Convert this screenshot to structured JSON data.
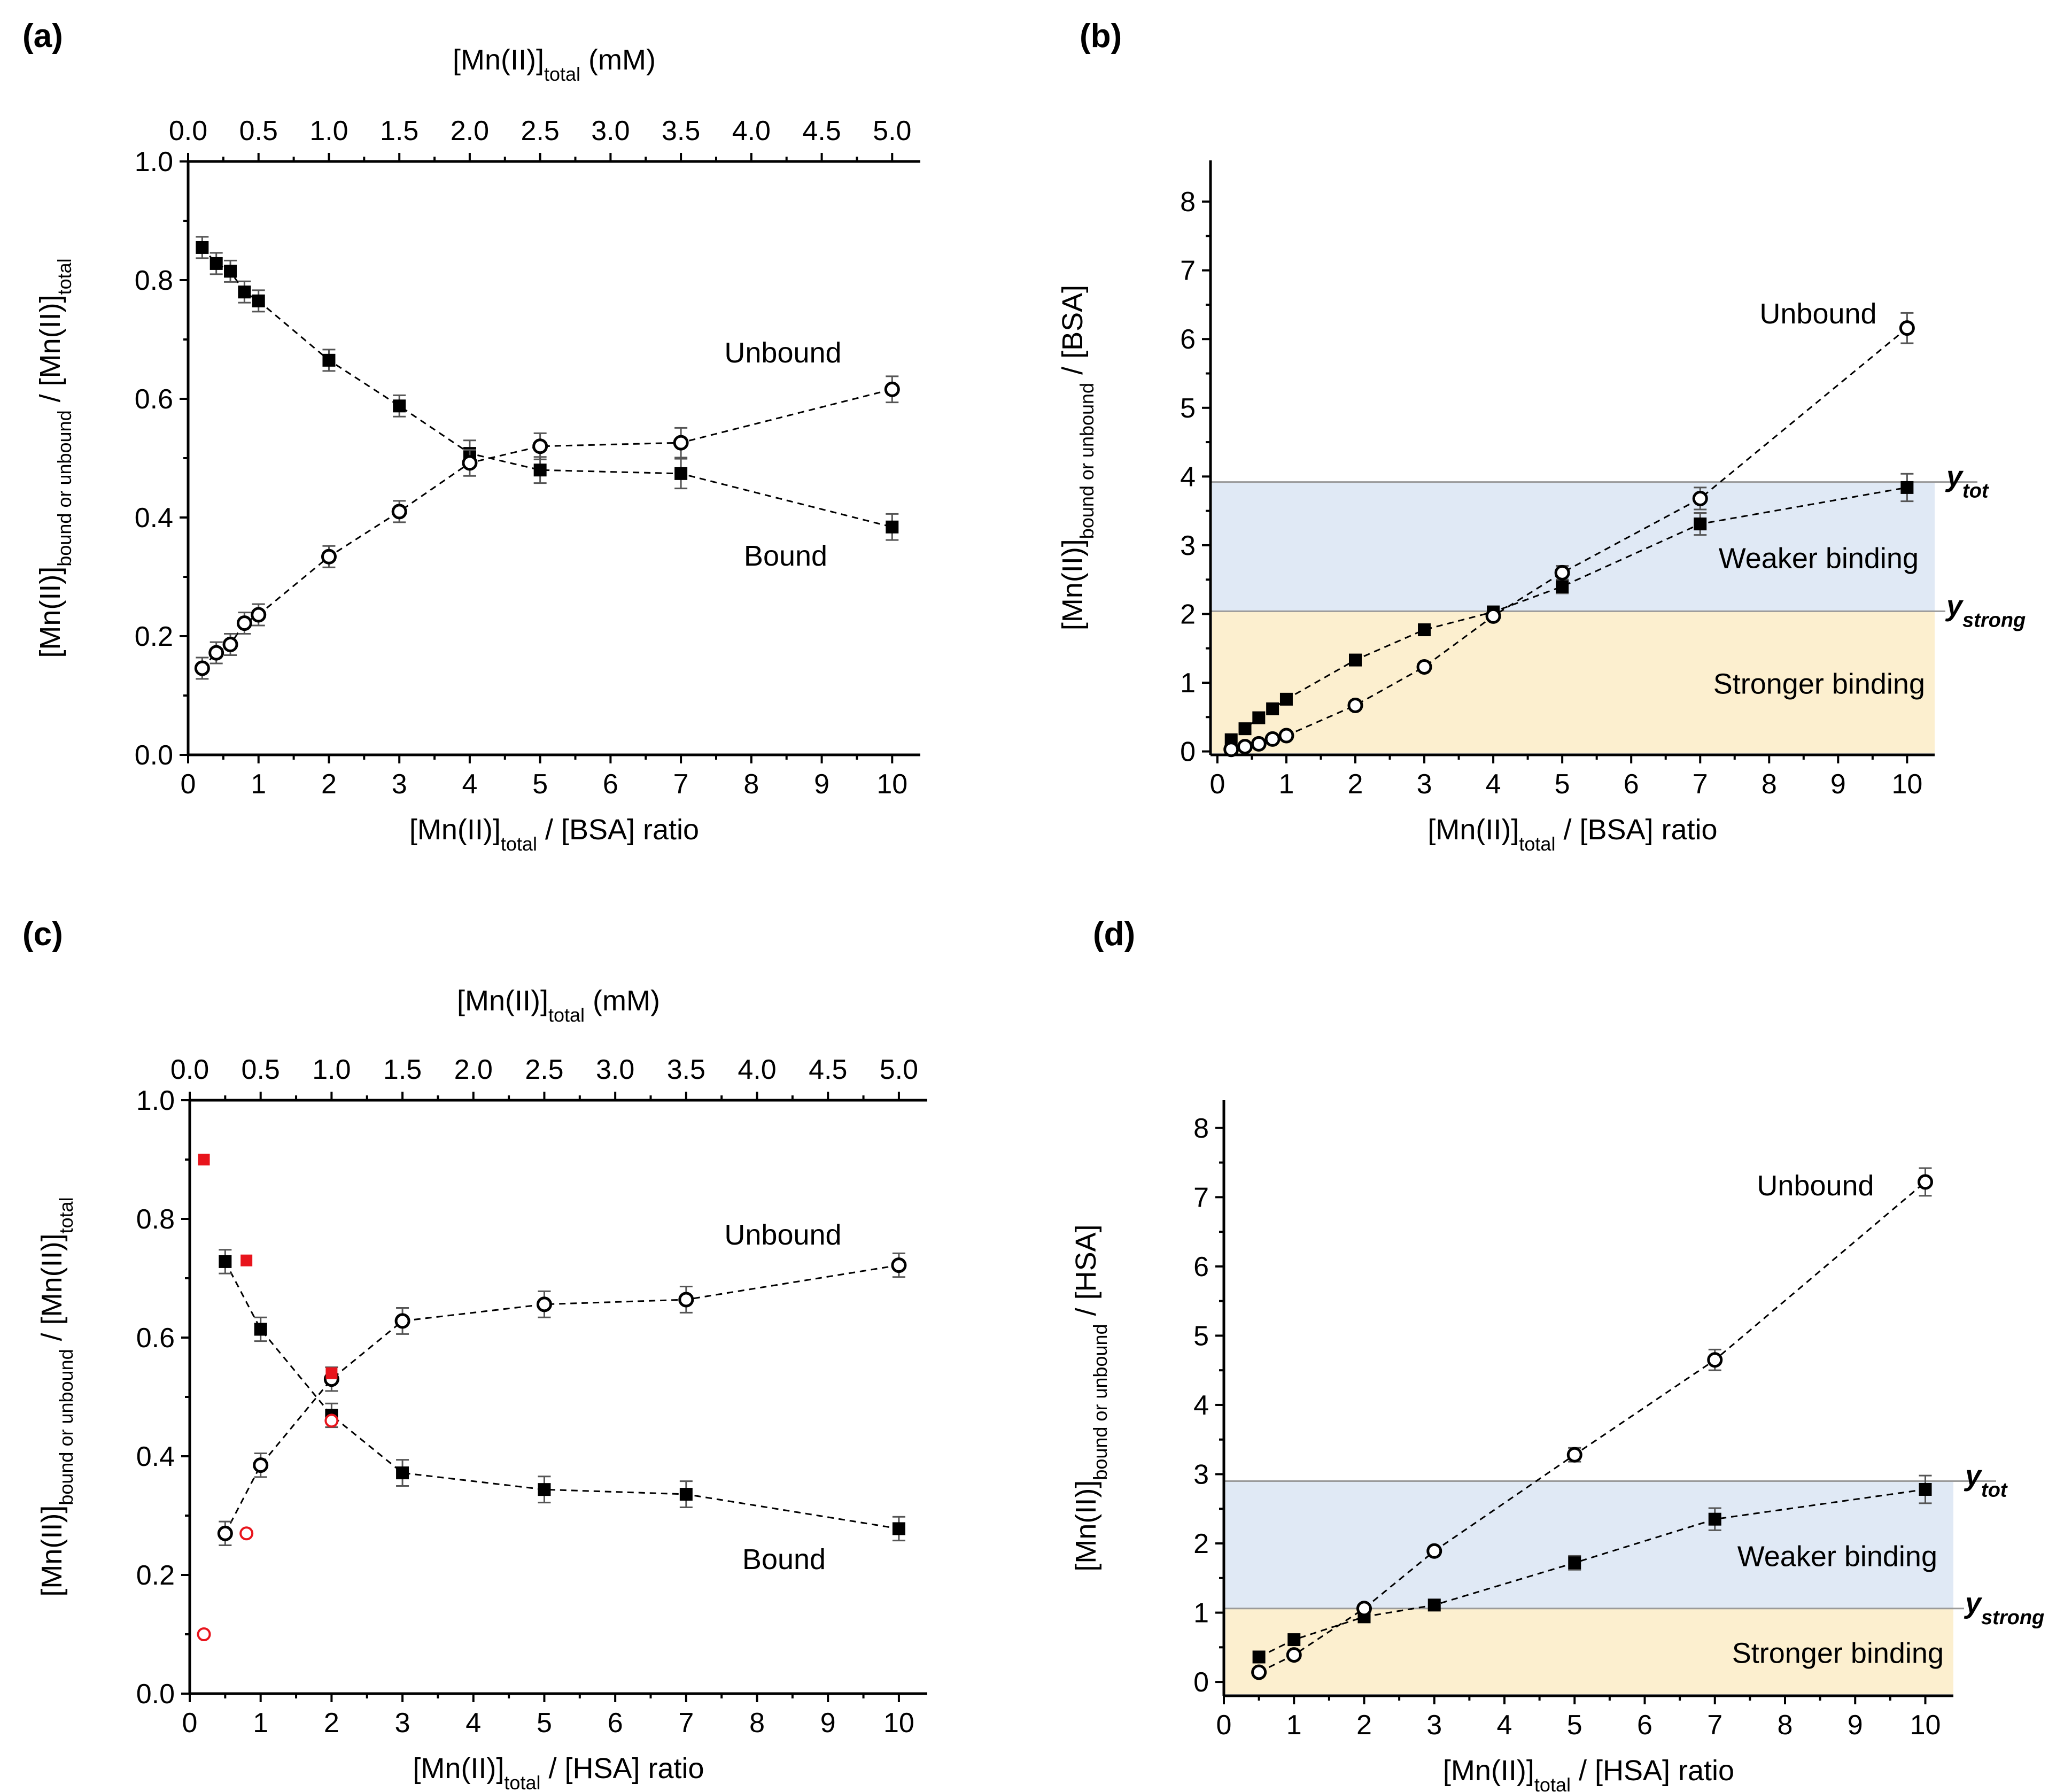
{
  "chart_data": [
    {
      "id": "a",
      "type": "scatter",
      "panel_label": "(a)",
      "top_axis": {
        "label_main": "[Mn(II)]",
        "label_sub": "total",
        "label_unit": " (mM)",
        "ticks": [
          "0.0",
          "0.5",
          "1.0",
          "1.5",
          "2.0",
          "2.5",
          "3.0",
          "3.5",
          "4.0",
          "4.5",
          "5.0"
        ],
        "xlim": [
          0,
          5.2
        ]
      },
      "xlabel_main": "[Mn(II)]",
      "xlabel_sub": "total",
      "xlabel_rest": " / [BSA] ratio",
      "ylabel_parts": [
        "[Mn(II)]",
        "bound or unbound",
        " / [Mn(II)]",
        "total"
      ],
      "xlim": [
        0,
        10.4
      ],
      "ylim": [
        0,
        1.0
      ],
      "xticks": [
        "0",
        "1",
        "2",
        "3",
        "4",
        "5",
        "6",
        "7",
        "8",
        "9",
        "10"
      ],
      "yticks": [
        "0.0",
        "0.2",
        "0.4",
        "0.6",
        "0.8",
        "1.0"
      ],
      "series": [
        {
          "name": "Bound",
          "marker": "filled-square",
          "x": [
            0.2,
            0.4,
            0.6,
            0.8,
            1,
            2,
            3,
            4,
            5,
            7,
            10
          ],
          "y": [
            0.855,
            0.828,
            0.815,
            0.78,
            0.765,
            0.665,
            0.588,
            0.508,
            0.48,
            0.474,
            0.384
          ],
          "err": [
            0.018,
            0.018,
            0.018,
            0.018,
            0.018,
            0.018,
            0.018,
            0.022,
            0.022,
            0.025,
            0.022
          ]
        },
        {
          "name": "Unbound",
          "marker": "open-circle",
          "x": [
            0.2,
            0.4,
            0.6,
            0.8,
            1,
            2,
            3,
            4,
            5,
            7,
            10
          ],
          "y": [
            0.146,
            0.172,
            0.186,
            0.222,
            0.236,
            0.334,
            0.41,
            0.492,
            0.52,
            0.526,
            0.616
          ],
          "err": [
            0.018,
            0.018,
            0.018,
            0.018,
            0.018,
            0.018,
            0.018,
            0.022,
            0.022,
            0.025,
            0.022
          ]
        }
      ],
      "labels": {
        "unbound": "Unbound",
        "bound": "Bound"
      }
    },
    {
      "id": "b",
      "type": "scatter",
      "panel_label": "(b)",
      "xlabel_main": "[Mn(II)]",
      "xlabel_sub": "total",
      "xlabel_rest": " / [BSA] ratio",
      "ylabel_parts": [
        "[Mn(II)]",
        "bound  or unbound",
        " / [BSA]",
        ""
      ],
      "xlim": [
        -0.1,
        10.4
      ],
      "ylim": [
        -0.05,
        8.6
      ],
      "xticks": [
        "0",
        "1",
        "2",
        "3",
        "4",
        "5",
        "6",
        "7",
        "8",
        "9",
        "10"
      ],
      "yticks": [
        "0",
        "1",
        "2",
        "3",
        "4",
        "5",
        "6",
        "7",
        "8"
      ],
      "bands": {
        "y_strong": 2.04,
        "y_tot": 3.92,
        "strong_color": "#fcefcf",
        "weak_color": "#e0e9f5",
        "stronger_label": "Stronger binding",
        "weaker_label": "Weaker binding"
      },
      "ylabels": {
        "tot_main": "y",
        "tot_sub": "tot",
        "strong_main": "y",
        "strong_sub": "strong"
      },
      "series": [
        {
          "name": "Bound",
          "marker": "filled-square",
          "x": [
            0.2,
            0.4,
            0.6,
            0.8,
            1,
            2,
            3,
            4,
            5,
            7,
            10
          ],
          "y": [
            0.17,
            0.33,
            0.49,
            0.62,
            0.76,
            1.33,
            1.77,
            2.03,
            2.4,
            3.31,
            3.84
          ],
          "err": [
            0,
            0,
            0,
            0,
            0,
            0,
            0,
            0,
            0.1,
            0.16,
            0.2
          ]
        },
        {
          "name": "Unbound",
          "marker": "open-circle",
          "x": [
            0.2,
            0.4,
            0.6,
            0.8,
            1,
            2,
            3,
            4,
            5,
            7,
            10
          ],
          "y": [
            0.03,
            0.07,
            0.11,
            0.18,
            0.23,
            0.67,
            1.23,
            1.97,
            2.6,
            3.68,
            6.16
          ],
          "err": [
            0,
            0,
            0,
            0,
            0,
            0,
            0,
            0,
            0.1,
            0.16,
            0.22
          ]
        }
      ],
      "labels": {
        "unbound": "Unbound"
      }
    },
    {
      "id": "c",
      "type": "scatter",
      "panel_label": "(c)",
      "top_axis": {
        "label_main": "[Mn(II)]",
        "label_sub": "total",
        "label_unit": " (mM)",
        "ticks": [
          "0.0",
          "0.5",
          "1.0",
          "1.5",
          "2.0",
          "2.5",
          "3.0",
          "3.5",
          "4.0",
          "4.5",
          "5.0"
        ],
        "xlim": [
          0,
          5.2
        ]
      },
      "xlabel_main": "[Mn(II)]",
      "xlabel_sub": "total",
      "xlabel_rest": " / [HSA] ratio",
      "ylabel_parts": [
        "[Mn(II)]",
        "bound or unbound",
        " / [Mn(II)]",
        "total"
      ],
      "xlim": [
        0,
        10.4
      ],
      "ylim": [
        0,
        1.0
      ],
      "xticks": [
        "0",
        "1",
        "2",
        "3",
        "4",
        "5",
        "6",
        "7",
        "8",
        "9",
        "10"
      ],
      "yticks": [
        "0.0",
        "0.2",
        "0.4",
        "0.6",
        "0.8",
        "1.0"
      ],
      "series": [
        {
          "name": "Bound",
          "marker": "filled-square",
          "x": [
            0.5,
            1,
            2,
            3,
            5,
            7,
            10
          ],
          "y": [
            0.728,
            0.614,
            0.469,
            0.372,
            0.344,
            0.336,
            0.278
          ],
          "err": [
            0.02,
            0.02,
            0.02,
            0.022,
            0.022,
            0.022,
            0.02
          ]
        },
        {
          "name": "Unbound",
          "marker": "open-circle",
          "x": [
            0.5,
            1,
            2,
            3,
            5,
            7,
            10
          ],
          "y": [
            0.27,
            0.385,
            0.53,
            0.628,
            0.656,
            0.664,
            0.722
          ],
          "err": [
            0.02,
            0.02,
            0.02,
            0.022,
            0.022,
            0.022,
            0.02
          ]
        },
        {
          "name": "Bound (red)",
          "marker": "red-square",
          "x": [
            0.2,
            0.8,
            2
          ],
          "y": [
            0.9,
            0.73,
            0.54
          ]
        },
        {
          "name": "Unbound (red)",
          "marker": "red-circle",
          "x": [
            0.2,
            0.8,
            2
          ],
          "y": [
            0.1,
            0.27,
            0.46
          ]
        }
      ],
      "labels": {
        "unbound": "Unbound",
        "bound": "Bound"
      }
    },
    {
      "id": "d",
      "type": "scatter",
      "panel_label": "(d)",
      "xlabel_main": "[Mn(II)]",
      "xlabel_sub": "total",
      "xlabel_rest": " / [HSA] ratio",
      "ylabel_parts": [
        "[Mn(II)]",
        "bound or unbound",
        " / [HSA]",
        ""
      ],
      "xlim": [
        0,
        10.4
      ],
      "ylim": [
        -0.2,
        8.4
      ],
      "xticks": [
        "0",
        "1",
        "2",
        "3",
        "4",
        "5",
        "6",
        "7",
        "8",
        "9",
        "10"
      ],
      "yticks": [
        "0",
        "1",
        "2",
        "3",
        "4",
        "5",
        "6",
        "7",
        "8"
      ],
      "bands": {
        "y_strong": 1.06,
        "y_tot": 2.9,
        "strong_color": "#fcefcf",
        "weak_color": "#e0e9f5",
        "stronger_label": "Stronger binding",
        "weaker_label": "Weaker binding"
      },
      "ylabels": {
        "tot_main": "y",
        "tot_sub": "tot",
        "strong_main": "y",
        "strong_sub": "strong"
      },
      "series": [
        {
          "name": "Bound",
          "marker": "filled-square",
          "x": [
            0.5,
            1,
            2,
            3,
            5,
            7,
            10
          ],
          "y": [
            0.36,
            0.61,
            0.94,
            1.11,
            1.72,
            2.35,
            2.78
          ],
          "err": [
            0,
            0,
            0,
            0,
            0.1,
            0.16,
            0.2
          ]
        },
        {
          "name": "Unbound",
          "marker": "open-circle",
          "x": [
            0.5,
            1,
            2,
            3,
            5,
            7,
            10
          ],
          "y": [
            0.14,
            0.39,
            1.06,
            1.89,
            3.28,
            4.65,
            7.22
          ],
          "err": [
            0,
            0,
            0,
            0,
            0.1,
            0.15,
            0.2
          ]
        }
      ],
      "labels": {
        "unbound": "Unbound"
      }
    }
  ]
}
